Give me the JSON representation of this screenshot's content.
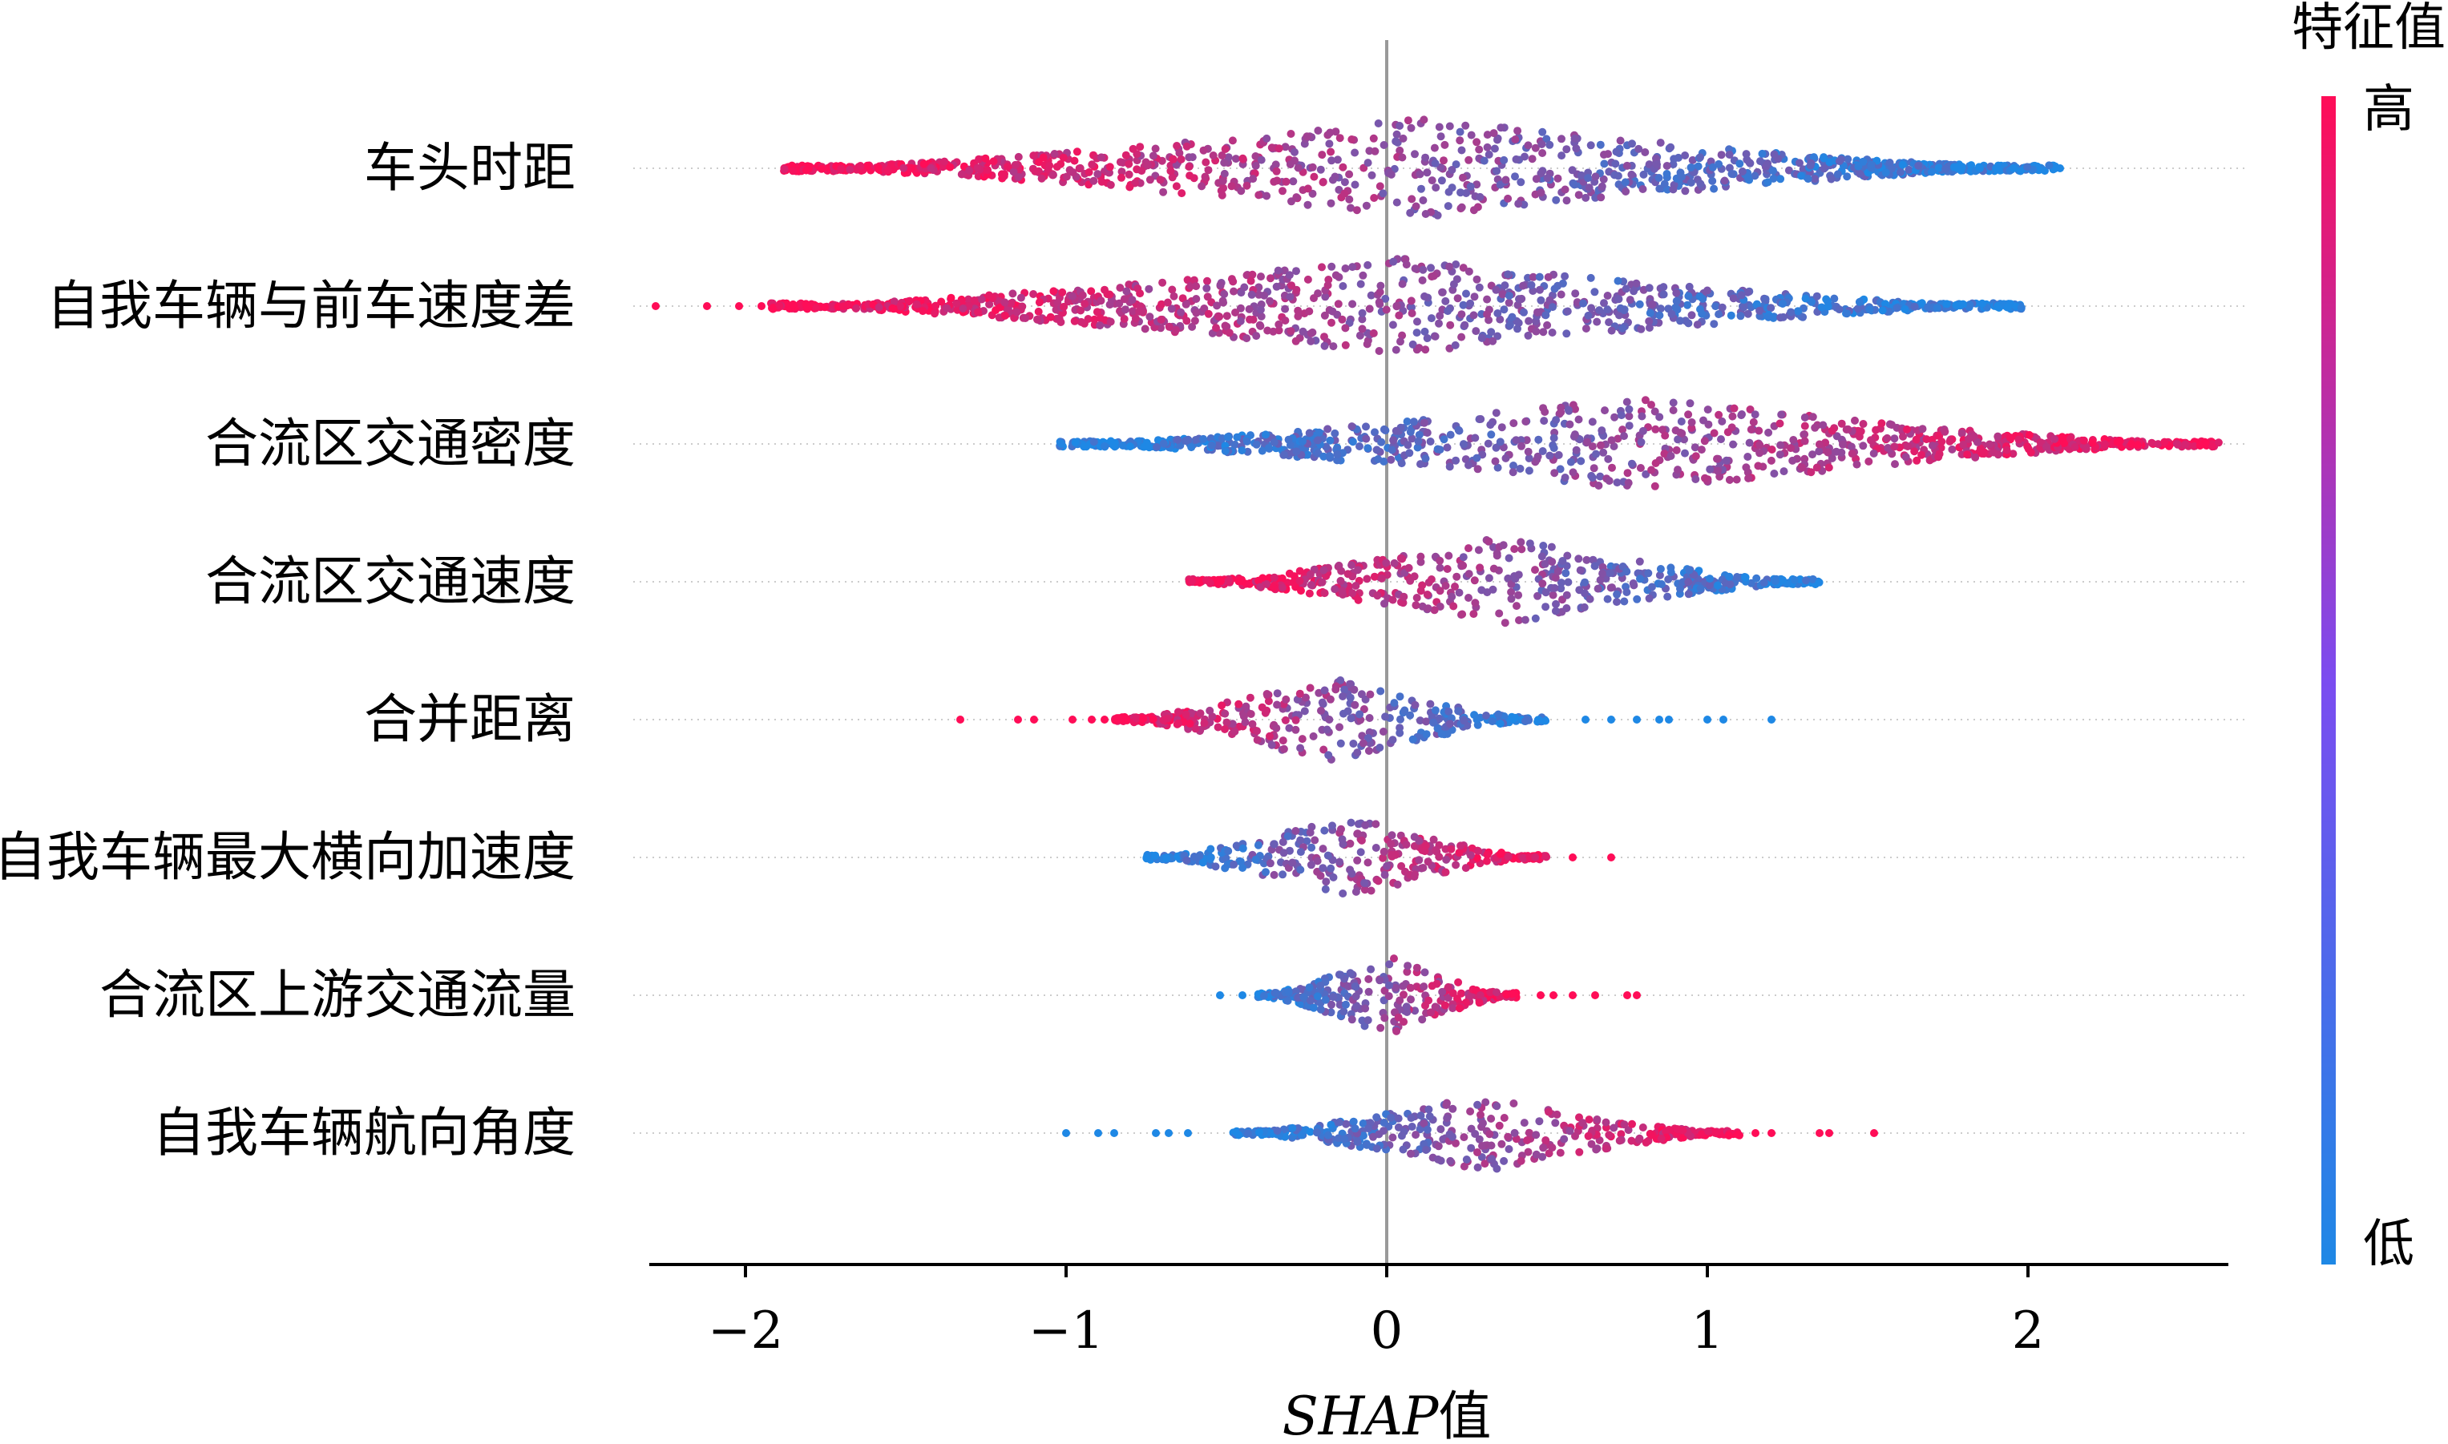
{
  "chart_data": {
    "type": "scatter",
    "subtype": "shap-beeswarm",
    "xlabel_italic": "SHAP",
    "xlabel_suffix": "值",
    "ylabel": "",
    "xlim": [
      -2.3,
      2.6
    ],
    "xticks": [
      {
        "value": -2,
        "label": "−2"
      },
      {
        "value": -1,
        "label": "−1"
      },
      {
        "value": 0,
        "label": "0"
      },
      {
        "value": 1,
        "label": "1"
      },
      {
        "value": 2,
        "label": "2"
      }
    ],
    "zero_line": true,
    "grid": false,
    "colorbar": {
      "title": "特征值",
      "high_label": "高",
      "low_label": "低",
      "high_color": "#ff0d57",
      "low_color": "#1e88e5"
    },
    "features": [
      {
        "name": "车头时距",
        "range": [
          -1.88,
          2.1
        ],
        "high_side": "left",
        "outliers": [
          1.78,
          1.85,
          1.9,
          2.1
        ]
      },
      {
        "name": "自我车辆与前车速度差",
        "range": [
          -1.92,
          1.98
        ],
        "high_side": "left",
        "outliers": [
          -2.28,
          -2.12,
          -2.02,
          -1.95
        ]
      },
      {
        "name": "合流区交通密度",
        "range": [
          -1.02,
          2.6
        ],
        "high_side": "right",
        "outliers": []
      },
      {
        "name": "合流区交通速度",
        "range": [
          -0.63,
          1.35
        ],
        "high_side": "left",
        "outliers": []
      },
      {
        "name": "合并距离",
        "range": [
          -0.85,
          0.5
        ],
        "high_side": "left",
        "outliers": [
          -1.33,
          -1.15,
          -1.1,
          -0.98,
          -0.92,
          -0.88,
          0.62,
          0.7,
          0.78,
          0.85,
          0.88,
          1.0,
          1.05,
          1.2
        ]
      },
      {
        "name": "自我车辆最大横向加速度",
        "range": [
          -0.75,
          0.5
        ],
        "high_side": "right",
        "outliers": [
          0.58,
          0.7
        ]
      },
      {
        "name": "合流区上游交通流量",
        "range": [
          -0.42,
          0.42
        ],
        "high_side": "right",
        "outliers": [
          -0.52,
          -0.45,
          0.48,
          0.52,
          0.58,
          0.65,
          0.75,
          0.78
        ]
      },
      {
        "name": "自我车辆航向角度",
        "range": [
          -0.48,
          1.1
        ],
        "high_side": "right",
        "outliers": [
          -1.0,
          -0.9,
          -0.85,
          -0.72,
          -0.68,
          -0.62,
          1.15,
          1.2,
          1.35,
          1.38,
          1.52
        ]
      }
    ]
  }
}
